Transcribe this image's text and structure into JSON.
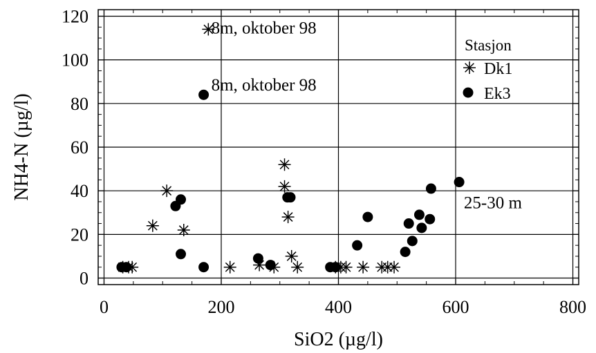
{
  "chart_data": {
    "type": "scatter",
    "title": "",
    "xlabel": "SiO2 (µg/l)",
    "ylabel": "NH4-N (µg/l)",
    "xlim": [
      -10,
      810
    ],
    "ylim": [
      -3,
      123
    ],
    "xticks": [
      0,
      200,
      400,
      600,
      800
    ],
    "yticks": [
      0,
      20,
      40,
      60,
      80,
      100,
      120
    ],
    "grid": true,
    "legend": {
      "title": "Stasjon",
      "placement": "top-right"
    },
    "series": [
      {
        "name": "Dk1",
        "marker": "asterisk",
        "points": [
          [
            32,
            5
          ],
          [
            42,
            5
          ],
          [
            48,
            5
          ],
          [
            83,
            24
          ],
          [
            107,
            40
          ],
          [
            136,
            22
          ],
          [
            178,
            114
          ],
          [
            215,
            5
          ],
          [
            265,
            6
          ],
          [
            290,
            5
          ],
          [
            308,
            52
          ],
          [
            308,
            42
          ],
          [
            314,
            28
          ],
          [
            320,
            10
          ],
          [
            330,
            5
          ],
          [
            395,
            5
          ],
          [
            404,
            5
          ],
          [
            413,
            5
          ],
          [
            442,
            5
          ],
          [
            474,
            5
          ],
          [
            484,
            5
          ],
          [
            495,
            5
          ]
        ]
      },
      {
        "name": "Ek3",
        "marker": "filled-circle",
        "points": [
          [
            30,
            5
          ],
          [
            38,
            5
          ],
          [
            122,
            33
          ],
          [
            131,
            36
          ],
          [
            131,
            11
          ],
          [
            170,
            84
          ],
          [
            170,
            5
          ],
          [
            263,
            9
          ],
          [
            284,
            6
          ],
          [
            313,
            37
          ],
          [
            318,
            37
          ],
          [
            386,
            5
          ],
          [
            395,
            5
          ],
          [
            432,
            15
          ],
          [
            450,
            28
          ],
          [
            514,
            12
          ],
          [
            520,
            25
          ],
          [
            526,
            17
          ],
          [
            538,
            29
          ],
          [
            542,
            23
          ],
          [
            556,
            27
          ],
          [
            558,
            41
          ],
          [
            606,
            44
          ]
        ]
      }
    ],
    "annotations": [
      {
        "text": "8m, oktober 98",
        "x": 183,
        "y": 112
      },
      {
        "text": "8m, oktober 98",
        "x": 183,
        "y": 86
      },
      {
        "text": "25-30 m",
        "x": 614,
        "y": 32
      }
    ]
  }
}
